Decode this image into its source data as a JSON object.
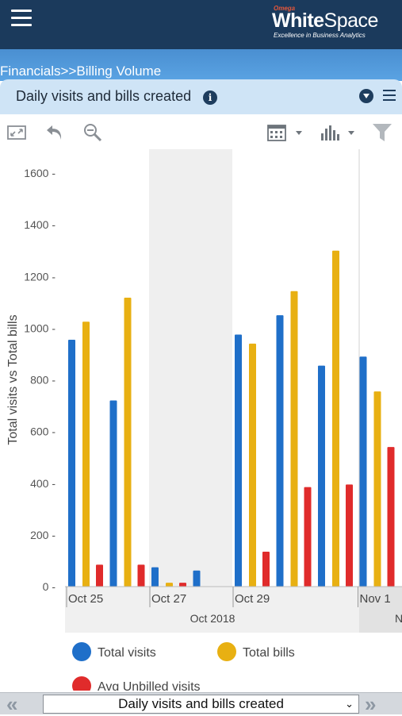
{
  "header": {
    "brand_small": "Omega",
    "brand_name_bold": "White",
    "brand_name_rest": "Space",
    "brand_tagline": "Excellence in Business Analytics"
  },
  "breadcrumb": "Financials>>Billing Volume",
  "panel": {
    "title": "Daily visits and bills created",
    "info_glyph": "i"
  },
  "toolbar": {
    "icons": [
      "expand-icon",
      "undo-icon",
      "zoom-out-icon",
      "calendar-icon",
      "bar-chart-icon",
      "filter-icon"
    ]
  },
  "chart_data": {
    "type": "bar",
    "ylabel": "Total visits vs Total bills",
    "ylim": [
      0,
      1600
    ],
    "yticks": [
      0,
      200,
      400,
      600,
      800,
      1000,
      1200,
      1400,
      1600
    ],
    "categories": [
      "Oct 25",
      "Oct 26",
      "Oct 27",
      "Oct 28",
      "Oct 29",
      "Oct 30",
      "Oct 31",
      "Nov 1"
    ],
    "x_tick_labels": [
      "Oct 25",
      "Oct 27",
      "Oct 29",
      "Nov 1"
    ],
    "x_group_label": "Oct 2018",
    "x_group_label_next": "N",
    "weekend_shaded": [
      "Oct 27",
      "Oct 28"
    ],
    "series": [
      {
        "name": "Total visits",
        "color": "#1f6fc9",
        "values": [
          955,
          720,
          75,
          62,
          975,
          1050,
          855,
          890
        ]
      },
      {
        "name": "Total bills",
        "color": "#e8b012",
        "values": [
          1025,
          1118,
          15,
          0,
          940,
          1143,
          1300,
          755
        ]
      },
      {
        "name": "Avg Unbilled visits",
        "color": "#e02b2b",
        "values": [
          85,
          85,
          15,
          0,
          135,
          385,
          395,
          540
        ]
      }
    ]
  },
  "footer": {
    "select_value": "Daily visits and bills created",
    "prev_glyph": "«",
    "next_glyph": "»"
  }
}
